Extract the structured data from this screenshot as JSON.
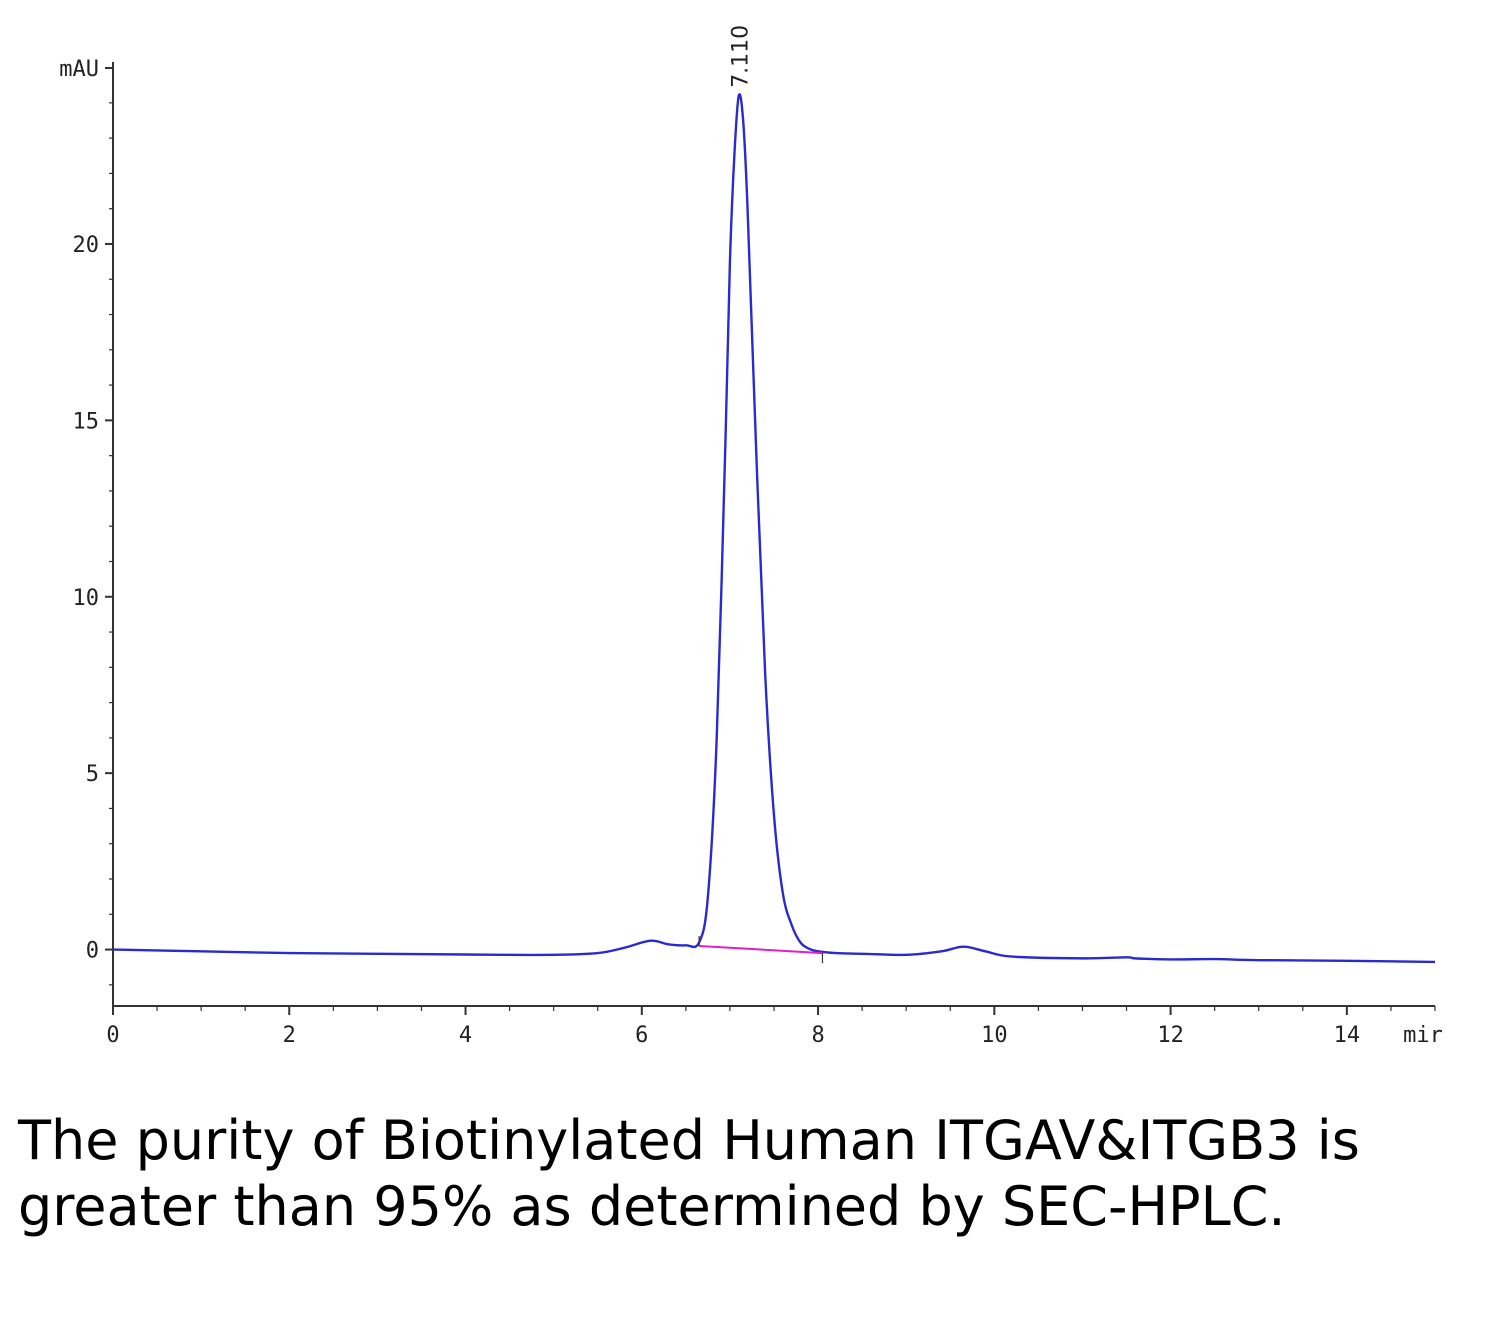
{
  "chart_data": {
    "type": "line",
    "y_unit_label": "mAU",
    "x_unit_label": "mir",
    "xlim": [
      0,
      15
    ],
    "ylim": [
      -1.6,
      25.3
    ],
    "x_ticks": [
      0,
      2,
      4,
      6,
      8,
      10,
      12,
      14
    ],
    "x_tick_labels": [
      "0",
      "2",
      "4",
      "6",
      "8",
      "10",
      "12",
      "14"
    ],
    "y_ticks": [
      0,
      5,
      10,
      15,
      20
    ],
    "y_tick_labels": [
      "0",
      "5",
      "10",
      "15",
      "20"
    ],
    "grid": false,
    "series": [
      {
        "color": "#2a2ad0",
        "x": [
          0,
          1,
          2,
          3,
          4,
          5,
          5.5,
          5.8,
          6.1,
          6.3,
          6.5,
          6.65,
          6.75,
          6.85,
          6.95,
          7.0,
          7.05,
          7.1,
          7.15,
          7.2,
          7.3,
          7.4,
          7.5,
          7.6,
          7.7,
          7.8,
          7.9,
          8.0,
          8.2,
          8.5,
          9.0,
          9.4,
          9.65,
          9.9,
          10.2,
          11.0,
          11.5,
          11.6,
          12.0,
          12.5,
          13.0,
          14.0,
          15.0
        ],
        "y": [
          0,
          -0.05,
          -0.1,
          -0.12,
          -0.14,
          -0.15,
          -0.1,
          0.05,
          0.25,
          0.15,
          0.12,
          0.2,
          1.5,
          6.0,
          14.5,
          19.5,
          22.5,
          24.2,
          23.5,
          21.0,
          14.0,
          7.8,
          3.8,
          1.6,
          0.7,
          0.2,
          0.02,
          -0.05,
          -0.1,
          -0.12,
          -0.15,
          -0.05,
          0.08,
          -0.05,
          -0.2,
          -0.25,
          -0.22,
          -0.25,
          -0.28,
          -0.27,
          -0.3,
          -0.32,
          -0.35
        ]
      }
    ],
    "baseline": {
      "color": "#e020c0",
      "x": [
        6.65,
        8.05
      ],
      "y": [
        0.1,
        -0.1
      ]
    },
    "peak_labels": [
      {
        "x": 7.11,
        "y": 24.2,
        "text": "7.110"
      }
    ]
  },
  "caption": "The purity of Biotinylated Human ITGAV&ITGB3 is greater than 95% as determined by SEC-HPLC."
}
